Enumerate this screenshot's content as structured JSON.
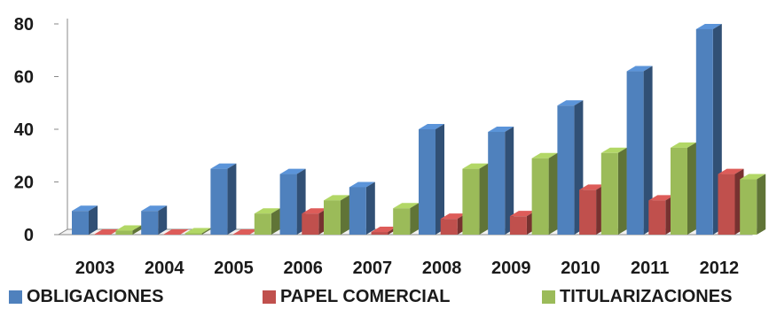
{
  "chart_data": {
    "type": "bar",
    "title": "",
    "xlabel": "",
    "ylabel": "",
    "categories": [
      "2003",
      "2004",
      "2005",
      "2006",
      "2007",
      "2008",
      "2009",
      "2010",
      "2011",
      "2012"
    ],
    "ylim": [
      0,
      80
    ],
    "yticks": [
      "0",
      "20",
      "40",
      "60",
      "80"
    ],
    "grid": false,
    "style": "3d-clustered-column",
    "legend_position": "bottom",
    "series": [
      {
        "name": "OBLIGACIONES",
        "color": "#4f81bd",
        "values": [
          9,
          9,
          25,
          23,
          18,
          40,
          39,
          49,
          62,
          78
        ]
      },
      {
        "name": "PAPEL COMERCIAL",
        "color": "#c0504d",
        "values": [
          0,
          0,
          0,
          8,
          1,
          6,
          7,
          17,
          13,
          23
        ]
      },
      {
        "name": "TITULARIZACIONES",
        "color": "#9bbb59",
        "values": [
          1.5,
          0.5,
          8,
          13,
          10,
          25,
          29,
          31,
          33,
          21
        ]
      }
    ]
  }
}
